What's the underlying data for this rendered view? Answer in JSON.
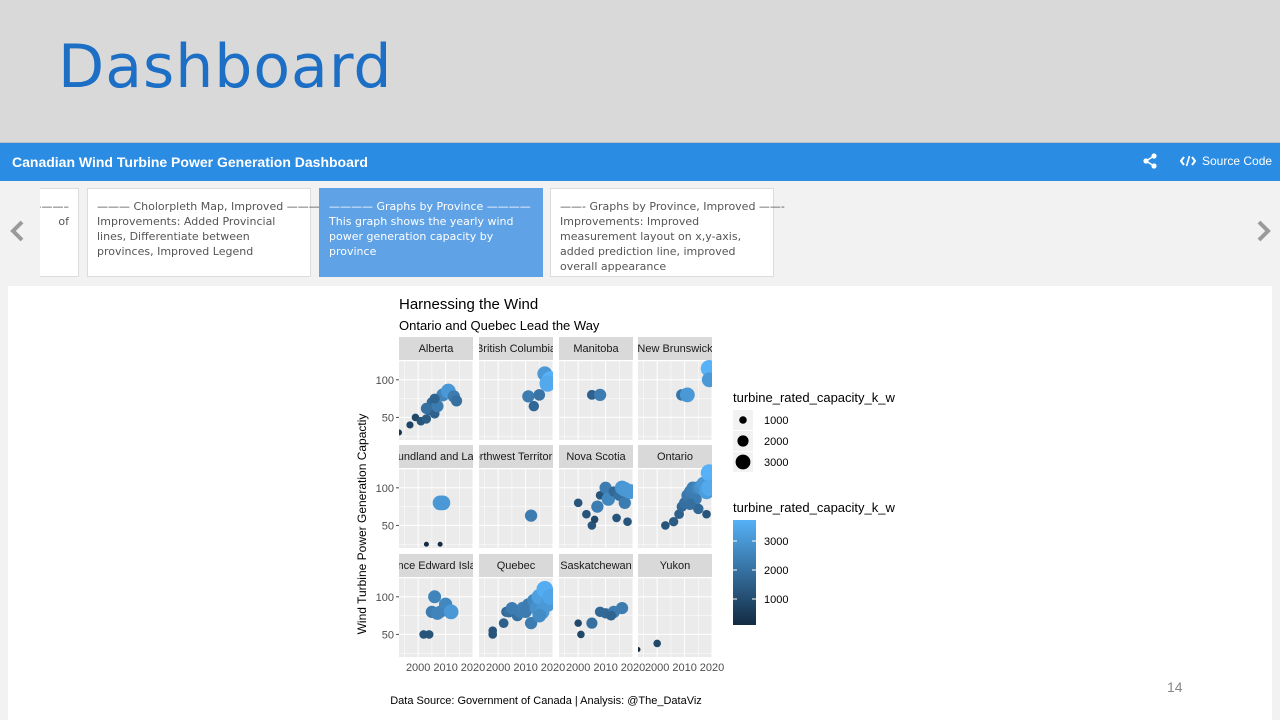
{
  "slide": {
    "title": "Dashboard",
    "page_number": "14"
  },
  "navbar": {
    "title": "Canadian Wind Turbine Power Generation Dashboard",
    "share_icon": "share-icon",
    "source_code_label": "Source Code",
    "code_icon": "code-icon"
  },
  "storyboard": {
    "cards": [
      {
        "title": "———–",
        "body": "of"
      },
      {
        "title": "——— Cholorpleth Map, Improved ———",
        "body": "Improvements: Added Provincial lines, Differentiate between provinces, Improved Legend"
      },
      {
        "title": "———— Graphs by Province ————",
        "body": "This graph shows the yearly wind power generation capacity by province"
      },
      {
        "title": "——- Graphs by Province, Improved ——-",
        "body": "Improvements: Improved measurement layout on x,y-axis, added prediction line, improved overall appearance"
      }
    ]
  },
  "chart_data": {
    "type": "scatter",
    "title": "Harnessing the Wind",
    "subtitle": "Ontario and Quebec Lead the Way",
    "ylabel": "Wind Turbine Power Generation Capactiy",
    "caption": "Data Source: Government of Canada | Analysis: @The_DataViz",
    "xlim": [
      1993,
      2020
    ],
    "ylim": [
      20,
      125
    ],
    "x_ticks": [
      "2000",
      "2010",
      "2020"
    ],
    "y_ticks": [
      "50",
      "100"
    ],
    "size_legend": {
      "title": "turbine_rated_capacity_k_w",
      "labels": [
        "1000",
        "2000",
        "3000"
      ]
    },
    "color_legend": {
      "title": "turbine_rated_capacity_k_w",
      "labels": [
        "3000",
        "2000",
        "1000"
      ]
    },
    "colors": {
      "low": "#132b43",
      "high": "#56b1f7",
      "panel": "#ebebeb",
      "strip": "#d9d9d9"
    },
    "panels": [
      {
        "name": "Alberta",
        "points": [
          [
            1993,
            30,
            600
          ],
          [
            1997,
            40,
            900
          ],
          [
            1999,
            50,
            1000
          ],
          [
            2001,
            45,
            1300
          ],
          [
            2003,
            48,
            1500
          ],
          [
            2004,
            60,
            1800
          ],
          [
            2005,
            70,
            1800
          ],
          [
            2006,
            55,
            1650
          ],
          [
            2007,
            65,
            2300
          ],
          [
            2009,
            80,
            2500
          ],
          [
            2011,
            85,
            3000
          ],
          [
            2013,
            78,
            2300
          ],
          [
            2014,
            72,
            2000
          ],
          [
            2003,
            62,
            2000
          ],
          [
            2006,
            75,
            1700
          ]
        ]
      },
      {
        "name": "British Columbia",
        "points": [
          [
            2011,
            78,
            2300
          ],
          [
            2013,
            65,
            1800
          ],
          [
            2015,
            80,
            2100
          ],
          [
            2017,
            108,
            3000
          ],
          [
            2019,
            100,
            3600
          ],
          [
            2018,
            95,
            3400
          ]
        ]
      },
      {
        "name": "Manitoba",
        "points": [
          [
            2005,
            80,
            1650
          ],
          [
            2008,
            80,
            2300
          ]
        ]
      },
      {
        "name": "New Brunswick",
        "points": [
          [
            2009,
            80,
            2100
          ],
          [
            2011,
            80,
            3000
          ],
          [
            2019,
            115,
            3600
          ],
          [
            2019,
            100,
            3000
          ]
        ]
      },
      {
        "name": "Newfoundland and Labrador",
        "points": [
          [
            2003,
            25,
            300
          ],
          [
            2008,
            25,
            300
          ],
          [
            2008,
            80,
            3000
          ],
          [
            2009,
            80,
            3000
          ]
        ]
      },
      {
        "name": "Northwest Territories",
        "points": [
          [
            2012,
            63,
            2300
          ]
        ]
      },
      {
        "name": "Nova Scotia",
        "points": [
          [
            2000,
            80,
            1300
          ],
          [
            2003,
            65,
            1300
          ],
          [
            2005,
            50,
            1300
          ],
          [
            2006,
            58,
            1000
          ],
          [
            2007,
            75,
            2300
          ],
          [
            2008,
            90,
            1300
          ],
          [
            2010,
            100,
            2300
          ],
          [
            2011,
            85,
            2600
          ],
          [
            2013,
            95,
            1800
          ],
          [
            2014,
            60,
            1300
          ],
          [
            2015,
            90,
            2000
          ],
          [
            2016,
            100,
            2900
          ],
          [
            2017,
            80,
            2300
          ],
          [
            2018,
            55,
            1300
          ],
          [
            2019,
            95,
            3000
          ],
          [
            2017,
            98,
            3000
          ]
        ]
      },
      {
        "name": "Ontario",
        "points": [
          [
            2003,
            50,
            1300
          ],
          [
            2006,
            55,
            1500
          ],
          [
            2008,
            65,
            1600
          ],
          [
            2009,
            75,
            1800
          ],
          [
            2010,
            80,
            2000
          ],
          [
            2011,
            90,
            2200
          ],
          [
            2012,
            95,
            2300
          ],
          [
            2013,
            100,
            2400
          ],
          [
            2014,
            85,
            2300
          ],
          [
            2015,
            100,
            2600
          ],
          [
            2016,
            100,
            2800
          ],
          [
            2017,
            105,
            3000
          ],
          [
            2018,
            95,
            3100
          ],
          [
            2019,
            120,
            3600
          ],
          [
            2019,
            100,
            3400
          ],
          [
            2018,
            65,
            1300
          ],
          [
            2015,
            72,
            1800
          ],
          [
            2012,
            78,
            2000
          ]
        ]
      },
      {
        "name": "Prince Edward Island",
        "points": [
          [
            2002,
            50,
            1300
          ],
          [
            2004,
            50,
            1300
          ],
          [
            2005,
            80,
            2300
          ],
          [
            2006,
            100,
            2500
          ],
          [
            2008,
            80,
            2300
          ],
          [
            2010,
            90,
            2600
          ],
          [
            2012,
            80,
            3000
          ],
          [
            2007,
            78,
            2500
          ]
        ]
      },
      {
        "name": "Quebec",
        "points": [
          [
            1998,
            50,
            1300
          ],
          [
            1998,
            55,
            1300
          ],
          [
            2002,
            65,
            1600
          ],
          [
            2003,
            80,
            1800
          ],
          [
            2004,
            80,
            2000
          ],
          [
            2006,
            80,
            2000
          ],
          [
            2007,
            75,
            2000
          ],
          [
            2008,
            80,
            2300
          ],
          [
            2009,
            85,
            2400
          ],
          [
            2010,
            80,
            2300
          ],
          [
            2011,
            90,
            2300
          ],
          [
            2012,
            65,
            2300
          ],
          [
            2013,
            95,
            2600
          ],
          [
            2014,
            85,
            2800
          ],
          [
            2015,
            100,
            3200
          ],
          [
            2016,
            80,
            3000
          ],
          [
            2017,
            110,
            3500
          ],
          [
            2018,
            90,
            3000
          ],
          [
            2019,
            100,
            3300
          ],
          [
            2005,
            85,
            2300
          ],
          [
            2015,
            75,
            2700
          ]
        ]
      },
      {
        "name": "Saskatchewan",
        "points": [
          [
            2000,
            65,
            1000
          ],
          [
            2001,
            50,
            1000
          ],
          [
            2005,
            65,
            2000
          ],
          [
            2008,
            80,
            1800
          ],
          [
            2010,
            78,
            1800
          ],
          [
            2013,
            80,
            2300
          ],
          [
            2016,
            85,
            2300
          ],
          [
            2012,
            75,
            1700
          ]
        ]
      },
      {
        "name": "Yukon",
        "points": [
          [
            1993,
            30,
            300
          ],
          [
            2000,
            38,
            1000
          ]
        ]
      }
    ]
  }
}
